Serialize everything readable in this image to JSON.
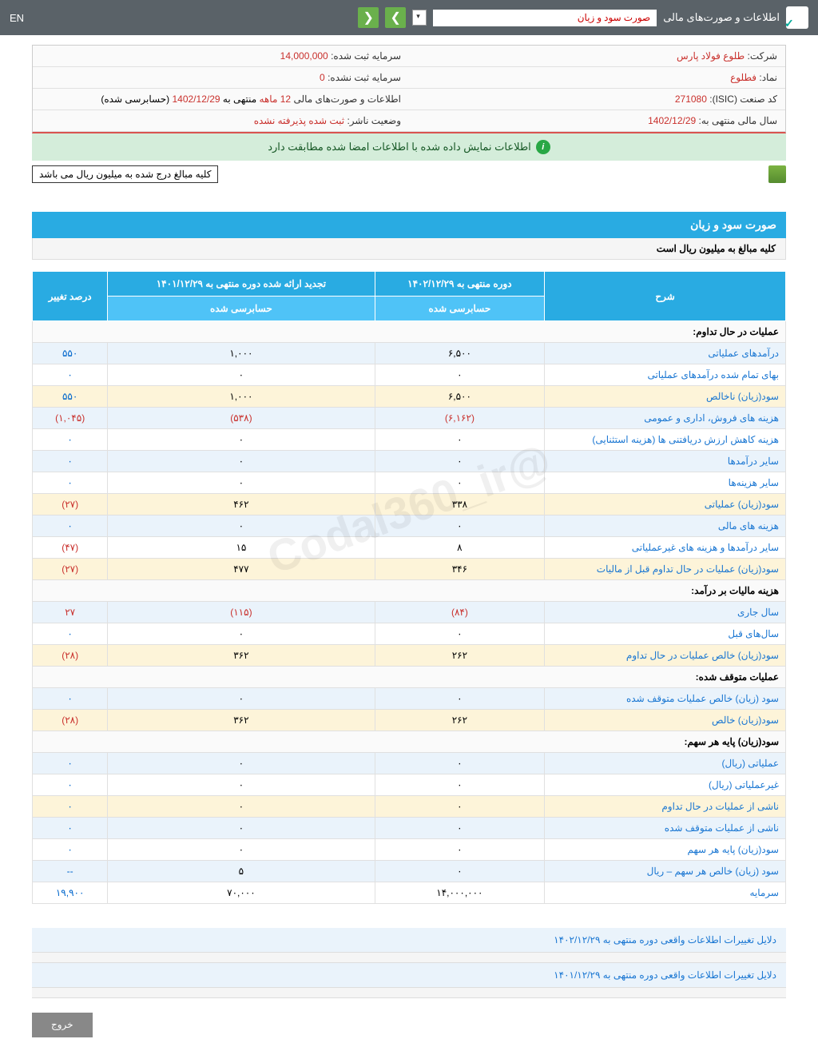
{
  "topbar": {
    "title": "اطلاعات و صورت‌های مالی",
    "report": "صورت سود و زیان",
    "lang": "EN"
  },
  "company": {
    "label_company": "شرکت:",
    "company": "طلوع فولاد پارس",
    "label_symbol": "نماد:",
    "symbol": "فطلوع",
    "label_isic": "کد صنعت (ISIC):",
    "isic": "271080",
    "label_fy": "سال مالی منتهی به:",
    "fy": "1402/12/29",
    "label_cap_reg": "سرمایه ثبت شده:",
    "cap_reg": "14,000,000",
    "label_cap_unreg": "سرمایه ثبت نشده:",
    "cap_unreg": "0",
    "label_period": "اطلاعات و صورت‌های مالی",
    "period": "12 ماهه",
    "period_end_lbl": "منتهی به",
    "period_end": "1402/12/29",
    "period_audit": "(حسابرسی شده)",
    "label_status": "وضعیت ناشر:",
    "status": "ثبت شده پذیرفته نشده"
  },
  "notice": "اطلاعات نمایش داده شده با اطلاعات امضا شده مطابقت دارد",
  "unit_note": "کلیه مبالغ درج شده به میلیون ریال می باشد",
  "section": {
    "title": "صورت سود و زیان",
    "sub": "کلیه مبالغ به میلیون ریال است"
  },
  "table": {
    "headers": {
      "desc": "شرح",
      "cur": "دوره منتهی به ۱۴۰۲/۱۲/۲۹",
      "prev": "تجدید ارائه شده دوره منتهی به ۱۴۰۱/۱۲/۲۹",
      "chg": "درصد تغییر",
      "audited": "حسابرسی شده"
    },
    "groups": {
      "g1": "عملیات در حال تداوم:",
      "g2": "هزینه مالیات بر درآمد:",
      "g3": "عملیات متوقف شده:",
      "g4": "سود(زیان) پایه هر سهم:"
    },
    "rows": [
      {
        "d": "درآمدهای عملیاتی",
        "c": "۶,۵۰۰",
        "p": "۱,۰۰۰",
        "ch": "۵۵۰",
        "cls": "alt"
      },
      {
        "d": "بهای تمام شده درآمدهای عملیاتی",
        "c": "۰",
        "p": "۰",
        "ch": "۰",
        "cls": ""
      },
      {
        "d": "سود(زیان) ناخالص",
        "c": "۶,۵۰۰",
        "p": "۱,۰۰۰",
        "ch": "۵۵۰",
        "cls": "hl"
      },
      {
        "d": "هزینه های فروش، اداری و عمومی",
        "c": "(۶,۱۶۲)",
        "p": "(۵۳۸)",
        "ch": "(۱,۰۴۵)",
        "cls": "alt",
        "neg": true
      },
      {
        "d": "هزینه کاهش ارزش دریافتنی ها (هزینه استثنایی)",
        "c": "۰",
        "p": "۰",
        "ch": "۰",
        "cls": ""
      },
      {
        "d": "سایر درآمدها",
        "c": "۰",
        "p": "۰",
        "ch": "۰",
        "cls": "alt"
      },
      {
        "d": "سایر هزینه‌ها",
        "c": "۰",
        "p": "۰",
        "ch": "۰",
        "cls": ""
      },
      {
        "d": "سود(زیان) عملیاتی",
        "c": "۳۳۸",
        "p": "۴۶۲",
        "ch": "(۲۷)",
        "cls": "hl",
        "chneg": true
      },
      {
        "d": "هزینه های مالی",
        "c": "۰",
        "p": "۰",
        "ch": "۰",
        "cls": "alt"
      },
      {
        "d": "سایر درآمدها و هزینه های غیرعملیاتی",
        "c": "۸",
        "p": "۱۵",
        "ch": "(۴۷)",
        "cls": "",
        "chneg": true
      },
      {
        "d": "سود(زیان) عملیات در حال تداوم قبل از مالیات",
        "c": "۳۴۶",
        "p": "۴۷۷",
        "ch": "(۲۷)",
        "cls": "hl",
        "chneg": true
      }
    ],
    "rows2": [
      {
        "d": "سال جاری",
        "c": "(۸۴)",
        "p": "(۱۱۵)",
        "ch": "۲۷",
        "cls": "alt",
        "neg": true
      },
      {
        "d": "سال‌های قبل",
        "c": "۰",
        "p": "۰",
        "ch": "۰",
        "cls": ""
      },
      {
        "d": "سود(زیان) خالص عملیات در حال تداوم",
        "c": "۲۶۲",
        "p": "۳۶۲",
        "ch": "(۲۸)",
        "cls": "hl",
        "chneg": true
      }
    ],
    "rows3": [
      {
        "d": "سود (زیان) خالص عملیات متوقف شده",
        "c": "۰",
        "p": "۰",
        "ch": "۰",
        "cls": "alt"
      },
      {
        "d": "سود(زیان) خالص",
        "c": "۲۶۲",
        "p": "۳۶۲",
        "ch": "(۲۸)",
        "cls": "hl",
        "chneg": true
      }
    ],
    "rows4": [
      {
        "d": "عملیاتی (ریال)",
        "c": "۰",
        "p": "۰",
        "ch": "۰",
        "cls": "alt"
      },
      {
        "d": "غیرعملیاتی (ریال)",
        "c": "۰",
        "p": "۰",
        "ch": "۰",
        "cls": ""
      },
      {
        "d": "ناشی از عملیات در حال تداوم",
        "c": "۰",
        "p": "۰",
        "ch": "۰",
        "cls": "hl"
      },
      {
        "d": "ناشی از عملیات متوقف شده",
        "c": "۰",
        "p": "۰",
        "ch": "۰",
        "cls": "alt"
      },
      {
        "d": "سود(زیان) پایه هر سهم",
        "c": "۰",
        "p": "۰",
        "ch": "۰",
        "cls": ""
      },
      {
        "d": "سود (زیان) خالص هر سهم – ریال",
        "c": "۰",
        "p": "۵",
        "ch": "--",
        "cls": "alt"
      },
      {
        "d": "سرمایه",
        "c": "۱۴,۰۰۰,۰۰۰",
        "p": "۷۰,۰۰۰",
        "ch": "۱۹,۹۰۰",
        "cls": ""
      }
    ]
  },
  "reasons": {
    "r1": "دلایل تغییرات اطلاعات واقعی دوره منتهی به ۱۴۰۲/۱۲/۲۹",
    "r2": "دلایل تغییرات اطلاعات واقعی دوره منتهی به ۱۴۰۱/۱۲/۲۹"
  },
  "exit": "خروج",
  "watermark": "@Codal360_ir"
}
